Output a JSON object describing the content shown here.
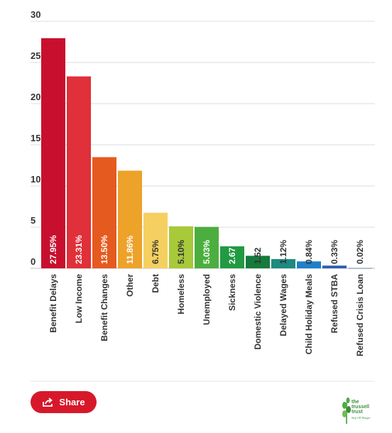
{
  "chart_data": {
    "type": "bar",
    "title": "",
    "xlabel": "",
    "ylabel": "",
    "ylim": [
      0,
      30
    ],
    "yticks": [
      0,
      5,
      10,
      15,
      20,
      25,
      30
    ],
    "grid": true,
    "categories": [
      "Benefit Delays",
      "Low Income",
      "Benefit Changes",
      "Other",
      "Debt",
      "Homeless",
      "Unemployed",
      "Sickness",
      "Domestic Violence",
      "Delayed Wages",
      "Child Holiday Meals",
      "Refused STBA",
      "Refused Crisis Loan"
    ],
    "values": [
      27.95,
      23.31,
      13.5,
      11.86,
      6.75,
      5.1,
      5.03,
      2.67,
      1.52,
      1.12,
      0.84,
      0.33,
      0.02
    ],
    "data_labels": [
      "27.95%",
      "23.31%",
      "13.50%",
      "11.86%",
      "6.75%",
      "5.10%",
      "5.03%",
      "2.67",
      "1.52",
      "1.12%",
      "0.84%",
      "0.33%",
      "0.02%"
    ],
    "colors": [
      "#c8102e",
      "#e0303a",
      "#e55a1f",
      "#eda22a",
      "#f5d060",
      "#a8c93a",
      "#4cae3f",
      "#229a43",
      "#157a3c",
      "#1f8a7f",
      "#1d80c8",
      "#2f5fb0",
      "#1b3a82"
    ],
    "label_colors": [
      "#ffffff",
      "#ffffff",
      "#ffffff",
      "#ffffff",
      "#333333",
      "#333333",
      "#ffffff",
      "#ffffff",
      "#333333",
      "#333333",
      "#333333",
      "#333333",
      "#333333"
    ]
  },
  "share": {
    "label": "Share"
  },
  "logo": {
    "text": "the\ntrussell\ntrust",
    "tagline": "Stop UK Hunger"
  }
}
